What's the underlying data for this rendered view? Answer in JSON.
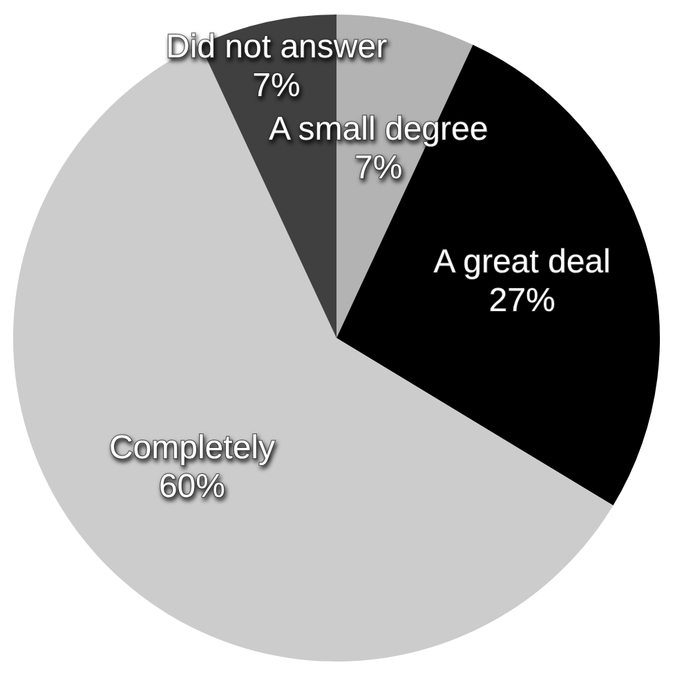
{
  "chart_data": {
    "type": "pie",
    "categories": [
      "A small degree",
      "A great deal",
      "Completely",
      "Did not answer"
    ],
    "values": [
      7,
      27,
      60,
      7
    ],
    "colors": [
      "#b3b3b3",
      "#000000",
      "#cccccc",
      "#404040"
    ],
    "value_labels": [
      "7%",
      "27%",
      "60%",
      "7%"
    ]
  }
}
